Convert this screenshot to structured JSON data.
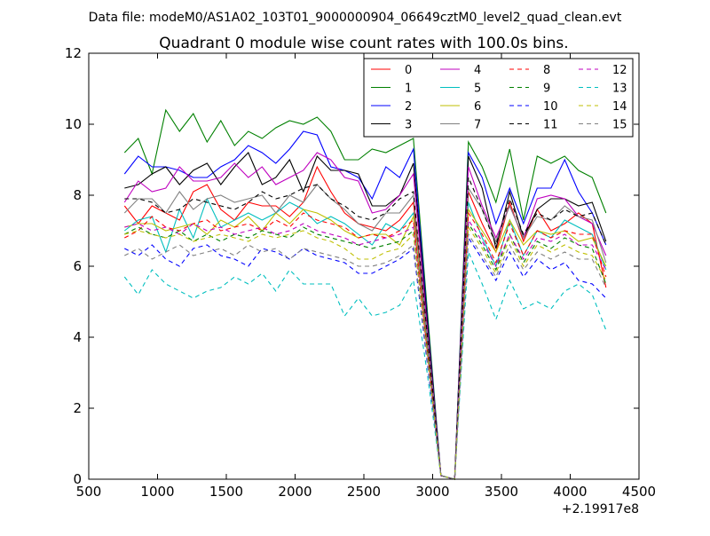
{
  "chart_data": {
    "type": "line",
    "suptitle": "Data file: modeM0/AS1A02_103T01_9000000904_06649cztM0_level2_quad_clean.evt",
    "title": "Quadrant 0 module wise count rates with 100.0s bins.",
    "xlabel": "",
    "ylabel": "",
    "x_offset_label": "+2.19917e8",
    "xlim": [
      500,
      4500
    ],
    "ylim": [
      0,
      12
    ],
    "xticks": [
      500,
      1000,
      1500,
      2000,
      2500,
      3000,
      3500,
      4000,
      4500
    ],
    "yticks": [
      0,
      2,
      4,
      6,
      8,
      10,
      12
    ],
    "grid": false,
    "legend": {
      "placement": "top-right",
      "columns": 4
    },
    "x": [
      760,
      860,
      960,
      1060,
      1160,
      1260,
      1360,
      1460,
      1560,
      1660,
      1760,
      1860,
      1960,
      2060,
      2160,
      2260,
      2360,
      2460,
      2560,
      2660,
      2760,
      2860,
      2960,
      3060,
      3160,
      3260,
      3360,
      3460,
      3560,
      3660,
      3760,
      3860,
      3960,
      4060,
      4160,
      4260
    ],
    "series": [
      {
        "name": "0",
        "color": "#ff0000",
        "dash": "solid",
        "values": [
          7.7,
          7.2,
          7.7,
          7.5,
          7.3,
          8.1,
          8.3,
          7.6,
          7.3,
          7.8,
          7.7,
          7.7,
          7.4,
          7.8,
          8.8,
          8.1,
          7.5,
          7.2,
          7.1,
          7.0,
          7.3,
          7.8,
          4.0,
          0.1,
          0.0,
          8.1,
          7.2,
          6.4,
          7.8,
          6.7,
          7.6,
          7.0,
          7.2,
          7.5,
          7.2,
          5.4
        ]
      },
      {
        "name": "1",
        "color": "#008000",
        "dash": "solid",
        "values": [
          9.2,
          9.6,
          8.6,
          10.4,
          9.8,
          10.3,
          9.5,
          10.1,
          9.4,
          9.8,
          9.6,
          9.9,
          10.1,
          10.0,
          10.2,
          9.8,
          9.0,
          9.0,
          9.3,
          9.2,
          9.4,
          9.6,
          4.8,
          0.1,
          0.0,
          9.5,
          8.8,
          7.8,
          9.3,
          7.3,
          9.1,
          8.9,
          9.1,
          8.7,
          8.5,
          7.5
        ]
      },
      {
        "name": "2",
        "color": "#0000ff",
        "dash": "solid",
        "values": [
          8.6,
          9.1,
          8.8,
          8.8,
          8.7,
          8.5,
          8.5,
          8.8,
          9.0,
          9.4,
          9.2,
          8.9,
          9.3,
          9.8,
          9.7,
          8.8,
          8.7,
          8.5,
          7.9,
          8.8,
          8.5,
          9.3,
          4.6,
          0.1,
          0.0,
          9.2,
          8.5,
          7.2,
          8.2,
          7.2,
          8.2,
          8.2,
          9.0,
          8.1,
          7.5,
          6.6
        ]
      },
      {
        "name": "3",
        "color": "#000000",
        "dash": "solid",
        "values": [
          8.2,
          8.3,
          8.6,
          8.8,
          8.3,
          8.7,
          8.9,
          8.3,
          8.8,
          9.2,
          8.3,
          8.5,
          9.0,
          8.1,
          9.1,
          8.7,
          8.7,
          8.6,
          7.7,
          7.7,
          8.0,
          8.9,
          4.5,
          0.1,
          0.0,
          9.1,
          8.2,
          6.5,
          8.1,
          6.8,
          7.6,
          7.9,
          7.9,
          7.7,
          7.8,
          6.7
        ]
      },
      {
        "name": "4",
        "color": "#bf00bf",
        "dash": "solid",
        "values": [
          7.8,
          8.4,
          8.1,
          8.2,
          8.8,
          8.4,
          8.4,
          8.5,
          8.9,
          8.5,
          8.8,
          8.3,
          8.5,
          8.7,
          9.2,
          9.0,
          8.5,
          8.4,
          7.5,
          7.6,
          8.0,
          8.6,
          4.3,
          0.1,
          0.0,
          8.8,
          7.7,
          6.8,
          7.7,
          6.8,
          7.9,
          8.0,
          7.9,
          7.4,
          7.2,
          6.3
        ]
      },
      {
        "name": "5",
        "color": "#00bfbf",
        "dash": "solid",
        "values": [
          7.0,
          7.3,
          7.4,
          6.4,
          7.6,
          6.8,
          7.9,
          7.1,
          7.3,
          7.5,
          7.3,
          7.5,
          7.8,
          7.6,
          7.2,
          7.4,
          7.2,
          6.9,
          6.6,
          7.2,
          7.0,
          7.5,
          3.8,
          0.1,
          0.0,
          7.8,
          6.8,
          6.0,
          7.3,
          6.3,
          7.0,
          6.8,
          7.3,
          7.1,
          6.9,
          5.9
        ]
      },
      {
        "name": "6",
        "color": "#bfbf00",
        "dash": "solid",
        "values": [
          7.1,
          7.2,
          7.2,
          7.0,
          7.1,
          7.2,
          6.9,
          7.3,
          7.1,
          7.4,
          7.0,
          7.5,
          7.2,
          7.6,
          7.5,
          7.3,
          7.0,
          6.8,
          6.9,
          6.9,
          6.6,
          7.4,
          3.7,
          0.1,
          0.0,
          7.6,
          7.0,
          6.4,
          7.3,
          6.6,
          7.0,
          6.9,
          7.0,
          6.7,
          6.8,
          6.0
        ]
      },
      {
        "name": "7",
        "color": "#808080",
        "dash": "solid",
        "values": [
          7.5,
          7.9,
          7.9,
          7.5,
          8.1,
          7.6,
          7.9,
          8.0,
          7.8,
          7.9,
          8.0,
          7.5,
          8.0,
          7.8,
          8.3,
          7.9,
          7.6,
          7.2,
          7.0,
          7.5,
          7.5,
          8.0,
          4.1,
          0.1,
          0.0,
          8.2,
          7.6,
          6.7,
          7.7,
          6.8,
          7.4,
          7.3,
          7.7,
          7.4,
          7.3,
          6.1
        ]
      },
      {
        "name": "8",
        "color": "#ff0000",
        "dash": "dashed",
        "values": [
          6.8,
          7.0,
          7.4,
          7.1,
          7.0,
          7.2,
          7.3,
          7.0,
          7.1,
          7.2,
          7.0,
          7.3,
          7.1,
          7.5,
          7.3,
          7.2,
          7.1,
          6.8,
          6.9,
          6.8,
          7.0,
          7.3,
          3.7,
          0.1,
          0.0,
          7.5,
          6.9,
          6.1,
          7.2,
          6.3,
          7.0,
          6.8,
          7.0,
          6.9,
          6.9,
          5.7
        ]
      },
      {
        "name": "9",
        "color": "#008000",
        "dash": "dashed",
        "values": [
          6.9,
          7.1,
          6.9,
          6.8,
          7.0,
          6.7,
          6.9,
          6.7,
          6.9,
          6.8,
          7.0,
          6.9,
          6.8,
          7.1,
          6.9,
          6.8,
          6.7,
          6.6,
          6.5,
          6.6,
          6.7,
          7.0,
          3.6,
          0.1,
          0.0,
          7.2,
          6.6,
          5.9,
          6.9,
          6.1,
          6.7,
          6.5,
          6.8,
          6.6,
          6.5,
          5.5
        ]
      },
      {
        "name": "10",
        "color": "#0000ff",
        "dash": "dashed",
        "values": [
          6.5,
          6.3,
          6.6,
          6.2,
          6.0,
          6.5,
          6.6,
          6.3,
          6.2,
          6.0,
          6.5,
          6.4,
          6.2,
          6.5,
          6.3,
          6.2,
          6.1,
          5.8,
          5.8,
          6.0,
          6.2,
          6.5,
          3.3,
          0.1,
          0.0,
          6.8,
          6.2,
          5.6,
          6.4,
          5.7,
          6.2,
          5.9,
          6.1,
          5.6,
          5.5,
          5.1
        ]
      },
      {
        "name": "11",
        "color": "#000000",
        "dash": "dashed",
        "values": [
          7.9,
          7.9,
          7.8,
          7.5,
          7.6,
          7.9,
          7.8,
          7.7,
          7.6,
          7.8,
          8.1,
          7.9,
          8.0,
          8.2,
          8.3,
          7.9,
          7.7,
          7.4,
          7.3,
          7.5,
          7.9,
          8.1,
          4.1,
          0.1,
          0.0,
          8.5,
          7.6,
          6.6,
          7.9,
          6.9,
          7.5,
          7.3,
          7.6,
          7.4,
          7.5,
          6.6
        ]
      },
      {
        "name": "12",
        "color": "#bf00bf",
        "dash": "dashed",
        "values": [
          7.1,
          7.2,
          7.0,
          7.1,
          6.9,
          7.2,
          7.0,
          7.1,
          6.9,
          7.0,
          7.1,
          6.9,
          7.0,
          7.2,
          7.0,
          6.9,
          6.8,
          6.6,
          6.7,
          6.8,
          6.9,
          7.1,
          3.6,
          0.1,
          0.0,
          7.3,
          6.7,
          6.0,
          6.9,
          6.2,
          6.8,
          6.7,
          6.9,
          6.6,
          6.6,
          5.9
        ]
      },
      {
        "name": "13",
        "color": "#00bfbf",
        "dash": "dashed",
        "values": [
          5.7,
          5.2,
          5.9,
          5.5,
          5.3,
          5.1,
          5.3,
          5.4,
          5.7,
          5.5,
          5.8,
          5.3,
          5.9,
          5.5,
          5.5,
          5.5,
          4.6,
          5.1,
          4.6,
          4.7,
          4.9,
          5.6,
          3.0,
          0.1,
          0.0,
          6.4,
          5.5,
          4.5,
          5.6,
          4.8,
          5.0,
          4.8,
          5.3,
          5.5,
          5.2,
          4.2
        ]
      },
      {
        "name": "14",
        "color": "#bfbf00",
        "dash": "dashed",
        "values": [
          6.9,
          7.0,
          6.9,
          6.8,
          6.9,
          6.7,
          6.8,
          6.9,
          6.8,
          6.7,
          6.9,
          6.8,
          6.9,
          7.0,
          6.8,
          6.7,
          6.5,
          6.2,
          6.2,
          6.4,
          6.5,
          6.9,
          3.5,
          0.1,
          0.0,
          7.1,
          6.5,
          5.8,
          6.8,
          6.0,
          6.6,
          6.4,
          6.6,
          6.4,
          6.3,
          5.6
        ]
      },
      {
        "name": "15",
        "color": "#808080",
        "dash": "dashed",
        "values": [
          6.3,
          6.5,
          6.2,
          6.4,
          6.6,
          6.3,
          6.4,
          6.5,
          6.3,
          6.6,
          6.4,
          6.5,
          6.2,
          6.5,
          6.4,
          6.3,
          6.2,
          6.0,
          6.0,
          6.1,
          6.3,
          6.6,
          3.4,
          0.1,
          0.0,
          6.9,
          6.3,
          5.7,
          6.6,
          5.9,
          6.4,
          6.2,
          6.4,
          6.2,
          6.2,
          5.4
        ]
      }
    ]
  }
}
